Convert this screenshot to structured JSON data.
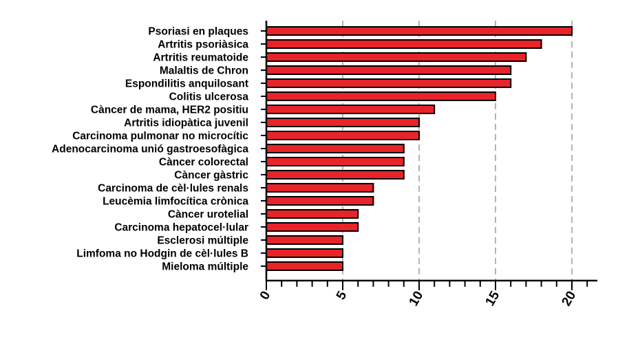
{
  "chart_data": {
    "type": "bar",
    "orientation": "horizontal",
    "title": "",
    "xlabel": "",
    "ylabel": "",
    "categories": [
      "Psoriasi en plaques",
      "Artritis psoriàsica",
      "Artritis reumatoide",
      "Malaltis de Chron",
      "Espondilitis anquilosant",
      "Colitis ulcerosa",
      "Càncer de mama, HER2 positiu",
      "Artritis idiopàtica juvenil",
      "Carcinoma pulmonar no microcític",
      "Adenocarcinoma unió gastroesofàgica",
      "Càncer colorectal",
      "Càncer gàstric",
      "Carcinoma de cèl·lules renals",
      "Leucèmia limfocítica crònica",
      "Càncer urotelial",
      "Carcinoma hepatocel·lular",
      "Esclerosi múltiple",
      "Limfoma no Hodgin de cèl·lules B",
      "Mieloma múltiple"
    ],
    "values": [
      20,
      18,
      17,
      16,
      16,
      15,
      11,
      10,
      10,
      9,
      9,
      9,
      7,
      7,
      6,
      6,
      5,
      5,
      5
    ],
    "xlim": [
      0,
      21
    ],
    "major_ticks": [
      "0",
      "5",
      "10",
      "15",
      "20"
    ],
    "minor_tick_step": 1,
    "grid": "vertical dashed at major ticks",
    "bar_color": "#e8242a",
    "bar_edge_color": "#000000",
    "grid_color": "#9a9a9a"
  }
}
